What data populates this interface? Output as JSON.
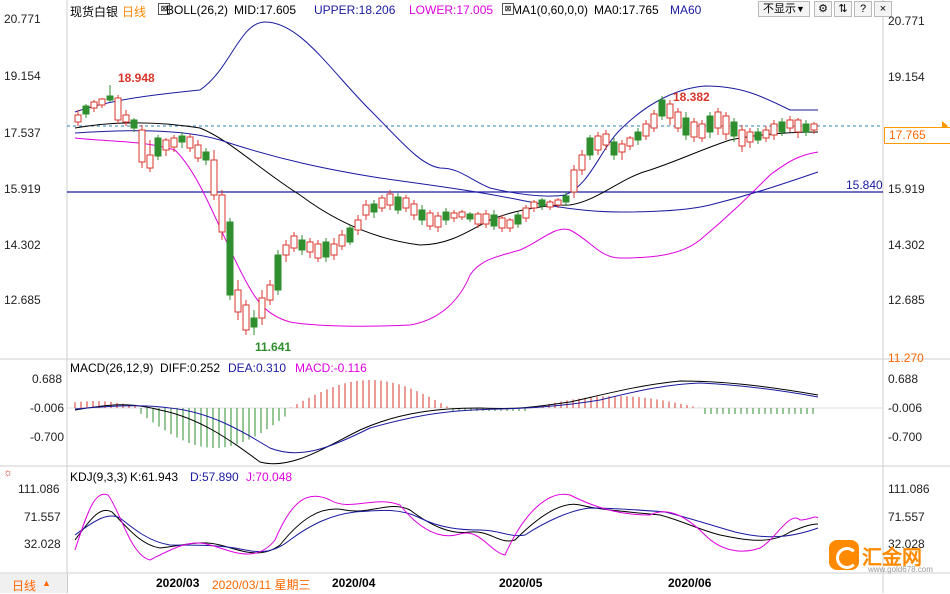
{
  "header": {
    "symbol": "现货白银",
    "period": "日线",
    "boll_label": "BOLL(26,2)",
    "boll_mid": "MID:17.605",
    "boll_upper": "UPPER:18.206",
    "boll_lower": "LOWER:17.005",
    "ma_label": "MA1(0,60,0,0)",
    "ma0": "MA0:17.765",
    "ma60": "MA60",
    "hide_button": "不显示",
    "hide_arrow": "▼"
  },
  "price_axis": {
    "left": [
      "20.771",
      "19.154",
      "17.537",
      "15.919",
      "14.302",
      "12.685"
    ],
    "right": [
      "20.771",
      "19.154",
      "14.302",
      "12.685",
      "11.270"
    ],
    "current_price": "17.765",
    "hline_label": "15.840",
    "right_15919": "15.919"
  },
  "annotations": {
    "high1": "18.948",
    "high2": "18.382",
    "low1": "11.641"
  },
  "macd": {
    "title": "MACD(26,12,9)",
    "diff": "DIFF:0.252",
    "dea": "DEA:0.310",
    "macd": "MACD:-0.116",
    "axis": [
      "0.688",
      "-0.006",
      "-0.700"
    ]
  },
  "kdj": {
    "title": "KDJ(9,3,3)",
    "k": "K:61.943",
    "d": "D:57.890",
    "j": "J:70.048",
    "axis": [
      "111.086",
      "71.557",
      "32.028"
    ],
    "axis_right": [
      "111.086",
      "71.557",
      "32.028"
    ]
  },
  "timeline": {
    "period_button": "日线",
    "period_arrow": "▲",
    "months": [
      "2020/03",
      "2020/04",
      "2020/05",
      "2020/06"
    ],
    "cursor_date": "2020/03/11 星期三"
  },
  "watermark": {
    "brand": "汇金网",
    "url": "www.gold678.com"
  },
  "colors": {
    "up": "#d9362b",
    "down": "#2f8f2f",
    "upper_band": "#1a1aa0",
    "lower_band": "#e000e0",
    "ma60": "#1a1aa0",
    "accent": "#ff8800"
  }
}
